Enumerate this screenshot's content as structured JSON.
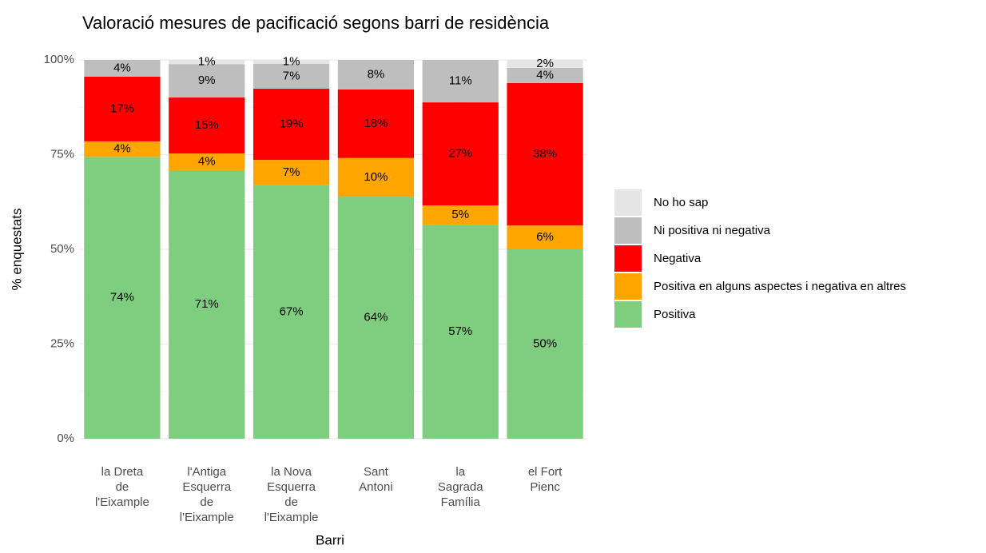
{
  "chart_data": {
    "type": "stacked_bar",
    "title": "Valoració mesures de pacificació segons barri de residència",
    "x_label": "Barri",
    "y_label": "% enquestats",
    "categories": [
      "la Dreta\nde\nl'Eixample",
      "l'Antiga\nEsquerra\nde\nl'Eixample",
      "la Nova\nEsquerra\nde\nl'Eixample",
      "Sant\nAntoni",
      "la\nSagrada\nFamília",
      "el Fort\nPienc"
    ],
    "series": [
      {
        "name": "Positiva",
        "color": "#7fce7f",
        "values": [
          74.4,
          70.9,
          66.9,
          63.9,
          56.5,
          50.0
        ],
        "value_labels": [
          "74%",
          "71%",
          "67%",
          "64%",
          "57%",
          "50%"
        ]
      },
      {
        "name": "Positiva en alguns aspectes i negativa en altres",
        "color": "#ffa500",
        "values": [
          4.1,
          4.4,
          6.7,
          10.2,
          5.1,
          6.3
        ],
        "value_labels": [
          "4%",
          "4%",
          "7%",
          "10%",
          "5%",
          "6%"
        ]
      },
      {
        "name": "Negativa",
        "color": "#ff0000",
        "values": [
          17.1,
          14.8,
          18.8,
          18.1,
          27.2,
          37.6
        ],
        "value_labels": [
          "17%",
          "15%",
          "19%",
          "18%",
          "27%",
          "38%"
        ]
      },
      {
        "name": "Ni positiva ni negativa",
        "color": "#bebebe",
        "values": [
          4.4,
          8.8,
          6.6,
          7.8,
          11.2,
          4.0
        ],
        "value_labels": [
          "4%",
          "9%",
          "7%",
          "8%",
          "11%",
          "4%"
        ]
      },
      {
        "name": "No ho sap",
        "color": "#e5e5e5",
        "values": [
          null,
          1.1,
          1.0,
          null,
          null,
          2.1
        ],
        "value_labels": [
          null,
          "1%",
          "1%",
          null,
          null,
          "2%"
        ]
      }
    ],
    "ylim": [
      0,
      100
    ],
    "yticks": [
      {
        "value": 0,
        "label": "0%"
      },
      {
        "value": 25,
        "label": "25%"
      },
      {
        "value": 50,
        "label": "50%"
      },
      {
        "value": 75,
        "label": "75%"
      },
      {
        "value": 100,
        "label": "100%"
      }
    ],
    "grid": true,
    "legend": "right"
  }
}
